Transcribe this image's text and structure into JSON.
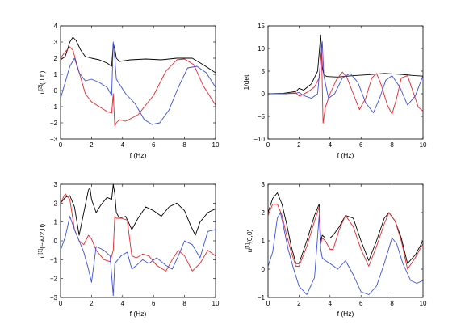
{
  "chart_data": [
    {
      "type": "line",
      "xlabel": "f (Hz)",
      "ylabel": "u^{[2]}(0,h)",
      "ylabel_main": "u",
      "ylabel_sup": "[2]",
      "ylabel_rest": "(0,h)",
      "xlim": [
        0,
        10
      ],
      "ylim": [
        -3,
        4
      ],
      "xticks": [
        0,
        2,
        4,
        6,
        8,
        10
      ],
      "yticks": [
        -3,
        -2,
        -1,
        0,
        1,
        2,
        3,
        4
      ],
      "grid": false,
      "series": [
        {
          "color": "#000000",
          "x": [
            0,
            0.3,
            0.6,
            0.8,
            1.0,
            1.3,
            1.6,
            2.0,
            2.5,
            3.0,
            3.3,
            3.4,
            3.5,
            3.6,
            3.8,
            4.5,
            5.5,
            6.5,
            7.5,
            8.5,
            9.2,
            10.0
          ],
          "y": [
            1.9,
            2.1,
            3.0,
            3.3,
            3.1,
            2.5,
            2.1,
            2.0,
            1.9,
            1.7,
            1.5,
            2.9,
            2.6,
            2.0,
            1.8,
            1.9,
            1.95,
            1.9,
            2.0,
            2.0,
            1.6,
            1.1
          ]
        },
        {
          "color": "#e8252b",
          "x": [
            0,
            0.3,
            0.6,
            0.8,
            1.0,
            1.3,
            1.6,
            2.0,
            2.5,
            3.0,
            3.3,
            3.4,
            3.5,
            3.6,
            3.8,
            4.2,
            5.0,
            6.0,
            6.8,
            7.5,
            8.0,
            8.6,
            9.2,
            10.0
          ],
          "y": [
            2.0,
            2.4,
            2.7,
            2.5,
            1.8,
            0.8,
            -0.2,
            -0.7,
            -1.0,
            -1.3,
            -1.4,
            -0.2,
            -2.2,
            -2.0,
            -1.8,
            -1.9,
            -1.5,
            -0.3,
            1.2,
            1.9,
            1.95,
            1.6,
            0.3,
            -0.9
          ]
        },
        {
          "color": "#3a4fe0",
          "x": [
            0,
            0.3,
            0.6,
            0.9,
            1.2,
            1.6,
            2.0,
            2.5,
            3.0,
            3.3,
            3.4,
            3.5,
            3.6,
            3.8,
            4.2,
            4.8,
            5.4,
            5.9,
            6.4,
            7.0,
            7.6,
            8.2,
            8.8,
            9.4,
            10.0
          ],
          "y": [
            -0.5,
            0.5,
            1.5,
            2.0,
            1.1,
            0.6,
            0.7,
            0.5,
            0.2,
            -0.3,
            3.0,
            2.0,
            0.7,
            0.4,
            -0.2,
            -0.8,
            -1.8,
            -2.1,
            -2.0,
            -1.2,
            0.2,
            1.4,
            1.5,
            1.1,
            0.2
          ]
        }
      ]
    },
    {
      "type": "line",
      "xlabel": "f (Hz)",
      "ylabel": "1/det",
      "ylabel_main": "1/det",
      "ylabel_sup": "",
      "ylabel_rest": "",
      "xlim": [
        0,
        10
      ],
      "ylim": [
        -10,
        15
      ],
      "xticks": [
        0,
        2,
        4,
        6,
        8,
        10
      ],
      "yticks": [
        -10,
        -5,
        0,
        5,
        10,
        15
      ],
      "grid": false,
      "series": [
        {
          "color": "#000000",
          "x": [
            0,
            1,
            1.8,
            2.0,
            2.3,
            2.8,
            3.2,
            3.4,
            3.5,
            3.6,
            3.8,
            4.5,
            5.5,
            6.5,
            7.5,
            8.5,
            9.5,
            10.0
          ],
          "y": [
            0,
            0.1,
            0.5,
            1.2,
            0.8,
            2.2,
            5.0,
            13.0,
            6.0,
            4.2,
            3.8,
            3.7,
            4.0,
            4.2,
            4.5,
            4.3,
            4.0,
            3.9
          ]
        },
        {
          "color": "#e8252b",
          "x": [
            0,
            1,
            1.8,
            2.0,
            2.2,
            2.6,
            3.0,
            3.3,
            3.45,
            3.55,
            3.7,
            4.0,
            4.4,
            4.8,
            5.1,
            5.5,
            5.9,
            6.3,
            6.7,
            7.0,
            7.3,
            7.7,
            8.0,
            8.3,
            8.6,
            9.0,
            9.3,
            9.7,
            10.0
          ],
          "y": [
            0,
            0,
            0.2,
            -0.5,
            -0.3,
            0.5,
            1.5,
            3.5,
            10.0,
            -6.5,
            -3.0,
            0,
            3.0,
            4.8,
            3.5,
            0,
            -3.5,
            -1.0,
            3.5,
            4.5,
            2.0,
            -2.5,
            -4.5,
            -1.0,
            3.5,
            4.0,
            1.0,
            -3.0,
            -3.8
          ]
        },
        {
          "color": "#3a4fe0",
          "x": [
            0,
            1,
            1.8,
            2.0,
            2.3,
            2.8,
            3.2,
            3.5,
            3.6,
            3.9,
            4.3,
            4.8,
            5.3,
            5.8,
            6.3,
            6.8,
            7.2,
            7.6,
            8.0,
            8.5,
            9.0,
            9.5,
            10.0
          ],
          "y": [
            0,
            0,
            0.1,
            0.3,
            -0.4,
            -1.0,
            0,
            11.5,
            4.0,
            -1.0,
            0,
            3.5,
            4.5,
            2.5,
            -2.0,
            -4.2,
            -1.0,
            3.0,
            4.0,
            1.5,
            -2.5,
            -0.5,
            4.0
          ]
        }
      ]
    },
    {
      "type": "line",
      "xlabel": "f (Hz)",
      "ylabel": "u^{[1]}(-w/2,0)",
      "ylabel_main": "u",
      "ylabel_sup": "[1]",
      "ylabel_rest": "(−w/2,0)",
      "xlim": [
        0,
        10
      ],
      "ylim": [
        -3,
        3
      ],
      "xticks": [
        0,
        2,
        4,
        6,
        8,
        10
      ],
      "yticks": [
        -3,
        -2,
        -1,
        0,
        1,
        2,
        3
      ],
      "grid": false,
      "series": [
        {
          "color": "#000000",
          "x": [
            0,
            0.3,
            0.6,
            0.9,
            1.2,
            1.5,
            1.8,
            1.9,
            2.0,
            2.3,
            2.6,
            3.0,
            3.3,
            3.4,
            3.5,
            3.6,
            3.8,
            4.2,
            4.6,
            5.0,
            5.5,
            6.0,
            6.5,
            7.0,
            7.5,
            8.0,
            8.4,
            8.7,
            9.0,
            9.5,
            10.0
          ],
          "y": [
            2.0,
            2.3,
            2.4,
            1.8,
            0.3,
            1.5,
            2.7,
            2.8,
            2.2,
            1.5,
            1.9,
            2.3,
            2.2,
            3.0,
            2.5,
            1.5,
            1.2,
            1.3,
            0.6,
            1.2,
            1.8,
            1.6,
            1.3,
            1.8,
            2.0,
            1.6,
            0.8,
            0.3,
            1.0,
            1.5,
            1.7
          ]
        },
        {
          "color": "#e8252b",
          "x": [
            0,
            0.3,
            0.6,
            0.9,
            1.2,
            1.5,
            1.8,
            2.0,
            2.3,
            2.8,
            3.2,
            3.4,
            3.5,
            3.6,
            3.9,
            4.3,
            4.6,
            4.9,
            5.3,
            5.7,
            6.2,
            6.8,
            7.2,
            7.6,
            8.0,
            8.5,
            9.0,
            9.5,
            10.0
          ],
          "y": [
            2.0,
            2.5,
            2.2,
            0.6,
            0,
            -0.2,
            0.3,
            0.1,
            -0.5,
            -1.0,
            -1.1,
            -0.5,
            1.3,
            1.2,
            1.2,
            1.1,
            -0.8,
            -0.9,
            -0.7,
            -0.8,
            -1.3,
            -1.6,
            -1.0,
            -0.5,
            -0.8,
            -1.6,
            -1.2,
            -0.5,
            -0.8
          ]
        },
        {
          "color": "#3a4fe0",
          "x": [
            0,
            0.3,
            0.6,
            0.9,
            1.2,
            1.5,
            1.8,
            2.0,
            2.3,
            2.8,
            3.2,
            3.4,
            3.5,
            3.6,
            3.9,
            4.3,
            4.6,
            4.9,
            5.3,
            5.7,
            6.2,
            6.8,
            7.2,
            7.6,
            8.0,
            8.5,
            9.0,
            9.5,
            10.0
          ],
          "y": [
            -0.5,
            0.2,
            1.3,
            0.6,
            0,
            -0.6,
            -1.5,
            -2.2,
            -0.3,
            -0.5,
            -0.8,
            -2.9,
            -1.2,
            -1.1,
            -0.8,
            -0.6,
            -1.5,
            -1.3,
            -1.0,
            -1.2,
            -0.9,
            -1.3,
            -1.5,
            -0.8,
            0,
            -0.2,
            -0.9,
            0.5,
            0.6
          ]
        }
      ]
    },
    {
      "type": "line",
      "xlabel": "f (Hz)",
      "ylabel": "u^{[1]}(0,0)",
      "ylabel_main": "u",
      "ylabel_sup": "[1]",
      "ylabel_rest": "(0,0)",
      "xlim": [
        0,
        10
      ],
      "ylim": [
        -1,
        3
      ],
      "xticks": [
        0,
        2,
        4,
        6,
        8,
        10
      ],
      "yticks": [
        -1,
        0,
        1,
        2,
        3
      ],
      "grid": false,
      "series": [
        {
          "color": "#000000",
          "x": [
            0,
            0.3,
            0.6,
            0.9,
            1.2,
            1.5,
            1.8,
            2.0,
            2.5,
            3.0,
            3.3,
            3.4,
            3.5,
            3.7,
            4.0,
            4.2,
            4.6,
            5.0,
            5.5,
            6.0,
            6.5,
            7.0,
            7.5,
            7.8,
            8.2,
            8.6,
            9.0,
            9.5,
            10.0
          ],
          "y": [
            2.0,
            2.5,
            2.7,
            2.3,
            1.6,
            0.8,
            0.2,
            0.2,
            1.0,
            1.9,
            2.3,
            1.0,
            1.2,
            1.1,
            1.1,
            1.2,
            1.5,
            1.9,
            1.8,
            1.0,
            0.3,
            1.0,
            1.8,
            2.0,
            1.7,
            1.1,
            0.2,
            0.5,
            1.0
          ]
        },
        {
          "color": "#e8252b",
          "x": [
            0,
            0.3,
            0.6,
            0.9,
            1.2,
            1.5,
            1.8,
            2.0,
            2.5,
            3.0,
            3.3,
            3.4,
            3.5,
            3.7,
            4.0,
            4.2,
            4.6,
            5.0,
            5.5,
            6.0,
            6.5,
            7.0,
            7.5,
            7.8,
            8.2,
            8.6,
            9.0,
            9.5,
            10.0
          ],
          "y": [
            1.9,
            2.3,
            2.3,
            1.9,
            1.2,
            0.6,
            0.1,
            0.1,
            0.8,
            1.7,
            2.2,
            0.9,
            1.1,
            1.0,
            0.7,
            0.7,
            1.4,
            1.9,
            1.5,
            0.7,
            0.1,
            0.8,
            1.6,
            2.0,
            1.7,
            1.0,
            0.0,
            0.4,
            0.9
          ]
        },
        {
          "color": "#3a4fe0",
          "x": [
            0,
            0.3,
            0.6,
            0.8,
            1.0,
            1.3,
            1.6,
            2.0,
            2.5,
            3.0,
            3.3,
            3.4,
            3.5,
            3.7,
            4.0,
            4.5,
            5.0,
            5.5,
            6.0,
            6.5,
            7.0,
            7.5,
            8.0,
            8.3,
            8.7,
            9.2,
            9.6,
            10.0
          ],
          "y": [
            0.1,
            0.6,
            1.8,
            2.0,
            1.5,
            0.7,
            0.1,
            -0.6,
            -0.9,
            -0.3,
            1.9,
            0.7,
            0.4,
            0.3,
            0.2,
            0,
            0.3,
            -0.2,
            -0.8,
            -0.9,
            -0.6,
            0.2,
            1.1,
            0.9,
            0.2,
            -0.4,
            -0.5,
            -0.4
          ]
        }
      ]
    }
  ]
}
